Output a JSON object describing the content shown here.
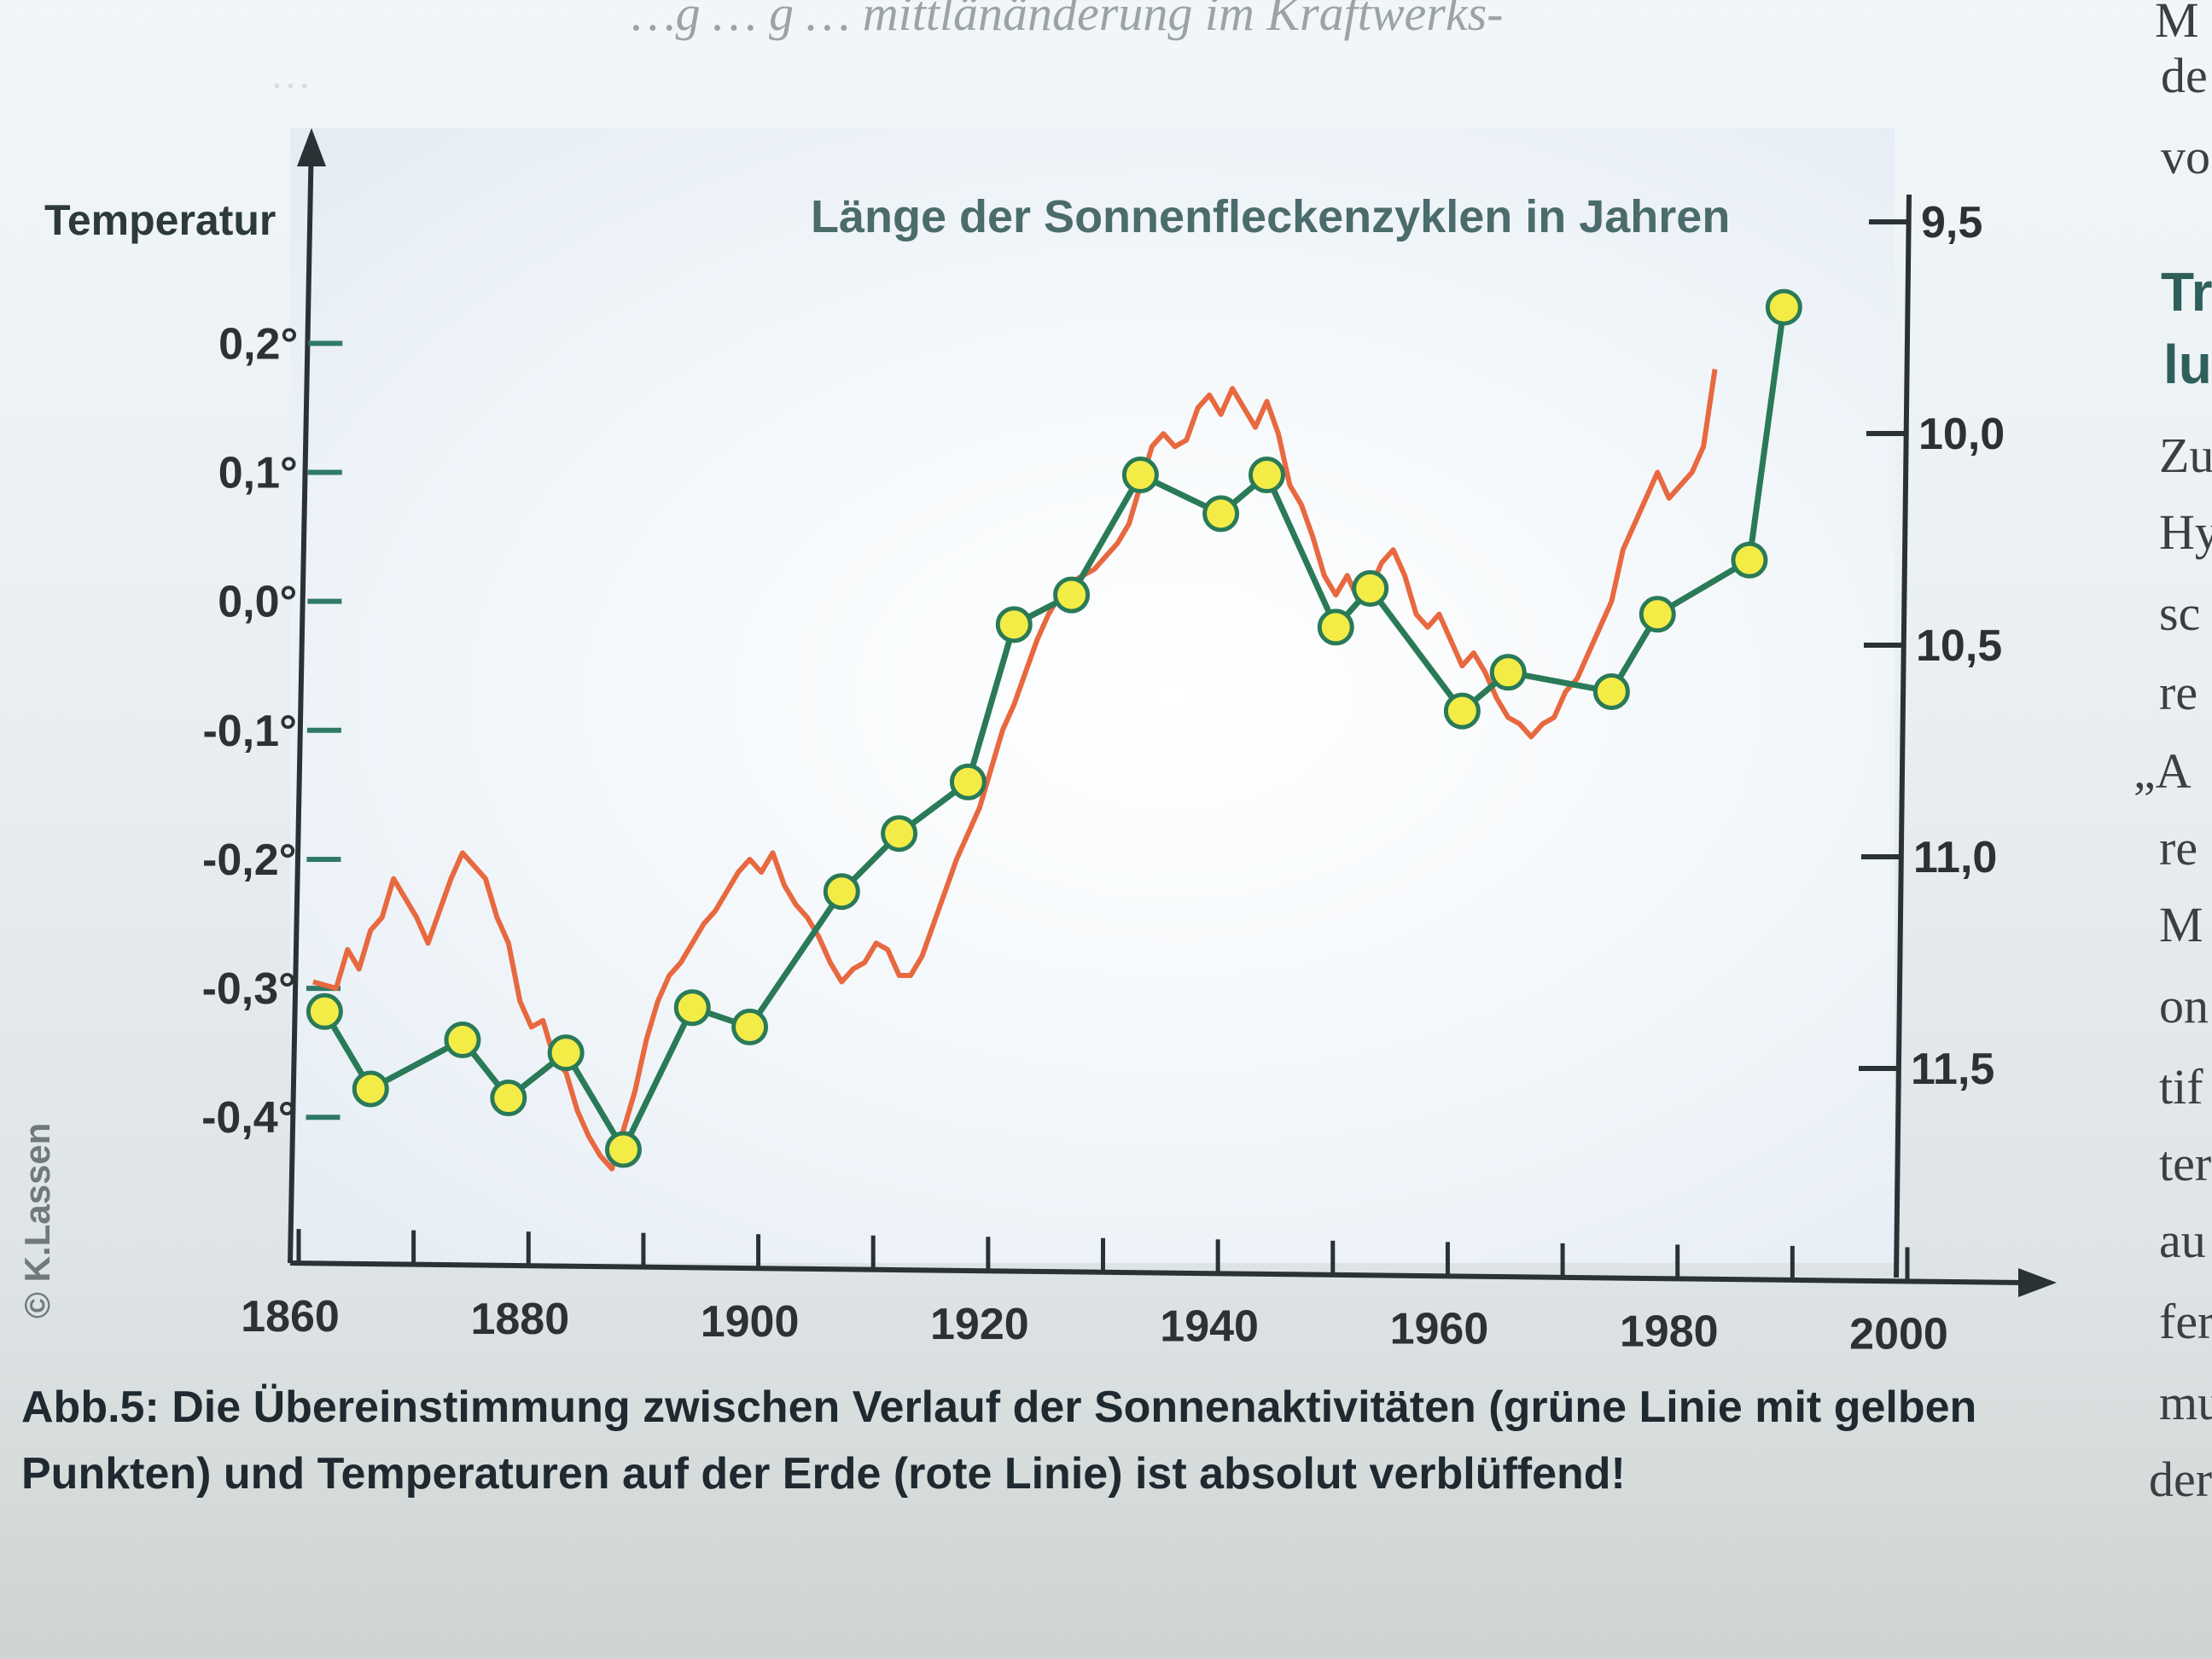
{
  "book": {
    "top_line": "…g … g … mittlänänderung im Kraftwerks-",
    "bleed_line": "…",
    "right_column": [
      "M",
      "de",
      "vo",
      "Tr",
      "lu",
      "Zu",
      "Hy",
      "sc",
      "re",
      "„A",
      "re",
      "M",
      "on",
      "tif",
      "ter",
      "au",
      "fer",
      "mu",
      "der"
    ]
  },
  "copyright": "© K.Lassen",
  "caption": "Abb.5: Die Übereinstimmung zwischen Verlauf der Sonnenaktivitäten (grüne Linie mit gelben Punkten) und Temperaturen auf der Erde (rote Linie) ist absolut verblüffend!",
  "colors": {
    "sun_line": "#2a7a58",
    "sun_dot": "#f3ec46",
    "temp_line": "#e8683f",
    "axis": "#2a3236"
  },
  "chart_data": {
    "type": "line",
    "title_left": "Temperatur",
    "title_right": "Länge der Sonnenfleckenzyklen in Jahren",
    "x_ticks": [
      1860,
      1880,
      1900,
      1920,
      1940,
      1960,
      1980,
      2000
    ],
    "x_range": [
      1860,
      2000
    ],
    "y_left": {
      "label": "Temperatur",
      "ticks": [
        "0,2°",
        "0,1°",
        "0,0°",
        "-0,1°",
        "-0,2°",
        "-0,3°",
        "-0,4°"
      ],
      "tick_values": [
        0.2,
        0.1,
        0.0,
        -0.1,
        -0.2,
        -0.3,
        -0.4
      ],
      "range": [
        -0.513,
        0.367
      ]
    },
    "y_right": {
      "label": "Länge der Sonnenfleckenzyklen in Jahren",
      "ticks": [
        "9,5",
        "10,0",
        "10,5",
        "11,0",
        "11,5"
      ],
      "tick_values": [
        9.5,
        10.0,
        10.5,
        11.0,
        11.5
      ],
      "inverted": true
    },
    "series": [
      {
        "name": "Sonnenaktivitäten",
        "axis": "left",
        "marker": "circle",
        "x": [
          1863,
          1867,
          1875,
          1879,
          1884,
          1889,
          1895,
          1900,
          1908,
          1913,
          1919,
          1923,
          1928,
          1934,
          1941,
          1945,
          1951,
          1954,
          1962,
          1966,
          1975,
          1979,
          1987,
          1990
        ],
        "y": [
          -0.318,
          -0.378,
          -0.34,
          -0.385,
          -0.35,
          -0.425,
          -0.315,
          -0.33,
          -0.225,
          -0.18,
          -0.14,
          -0.018,
          0.005,
          0.098,
          0.068,
          0.098,
          -0.02,
          0.01,
          -0.085,
          -0.055,
          -0.07,
          -0.01,
          0.032,
          0.228
        ]
      },
      {
        "name": "Temperaturen",
        "axis": "left",
        "marker": "none",
        "x": [
          1862,
          1864,
          1865,
          1866,
          1867,
          1868,
          1869,
          1870,
          1871,
          1872,
          1873,
          1874,
          1875,
          1876,
          1877,
          1878,
          1879,
          1880,
          1881,
          1882,
          1883,
          1884,
          1885,
          1886,
          1887,
          1888,
          1889,
          1890,
          1891,
          1892,
          1893,
          1894,
          1895,
          1896,
          1897,
          1898,
          1899,
          1900,
          1901,
          1902,
          1903,
          1904,
          1905,
          1906,
          1907,
          1908,
          1909,
          1910,
          1911,
          1912,
          1913,
          1914,
          1915,
          1916,
          1917,
          1918,
          1919,
          1920,
          1921,
          1922,
          1923,
          1924,
          1925,
          1926,
          1927,
          1928,
          1929,
          1930,
          1931,
          1932,
          1933,
          1934,
          1935,
          1936,
          1937,
          1938,
          1939,
          1940,
          1941,
          1942,
          1943,
          1944,
          1945,
          1946,
          1947,
          1948,
          1949,
          1950,
          1951,
          1952,
          1953,
          1954,
          1955,
          1956,
          1957,
          1958,
          1959,
          1960,
          1961,
          1962,
          1963,
          1964,
          1965,
          1966,
          1967,
          1968,
          1969,
          1970,
          1971,
          1972,
          1973,
          1974,
          1975,
          1976,
          1977,
          1978,
          1979,
          1980,
          1981,
          1982,
          1983,
          1984
        ],
        "y": [
          -0.295,
          -0.3,
          -0.27,
          -0.285,
          -0.255,
          -0.245,
          -0.215,
          -0.23,
          -0.245,
          -0.265,
          -0.24,
          -0.215,
          -0.195,
          -0.205,
          -0.215,
          -0.245,
          -0.265,
          -0.31,
          -0.33,
          -0.325,
          -0.355,
          -0.365,
          -0.395,
          -0.415,
          -0.43,
          -0.44,
          -0.41,
          -0.38,
          -0.34,
          -0.31,
          -0.29,
          -0.28,
          -0.265,
          -0.25,
          -0.24,
          -0.225,
          -0.21,
          -0.2,
          -0.21,
          -0.195,
          -0.22,
          -0.235,
          -0.245,
          -0.26,
          -0.28,
          -0.295,
          -0.285,
          -0.28,
          -0.265,
          -0.27,
          -0.29,
          -0.29,
          -0.275,
          -0.25,
          -0.225,
          -0.2,
          -0.18,
          -0.16,
          -0.13,
          -0.1,
          -0.08,
          -0.055,
          -0.03,
          -0.01,
          0.005,
          0.015,
          0.02,
          0.025,
          0.035,
          0.045,
          0.06,
          0.09,
          0.12,
          0.13,
          0.12,
          0.125,
          0.15,
          0.16,
          0.145,
          0.165,
          0.15,
          0.135,
          0.155,
          0.13,
          0.09,
          0.075,
          0.05,
          0.02,
          0.005,
          0.02,
          0.0,
          0.01,
          0.03,
          0.04,
          0.02,
          -0.01,
          -0.02,
          -0.01,
          -0.03,
          -0.05,
          -0.04,
          -0.055,
          -0.075,
          -0.09,
          -0.095,
          -0.105,
          -0.095,
          -0.09,
          -0.07,
          -0.06,
          -0.04,
          -0.02,
          0.0,
          0.04,
          0.06,
          0.08,
          0.1,
          0.08,
          0.09,
          0.1,
          0.12,
          0.18
        ]
      }
    ],
    "grid": false,
    "legend": "none"
  }
}
